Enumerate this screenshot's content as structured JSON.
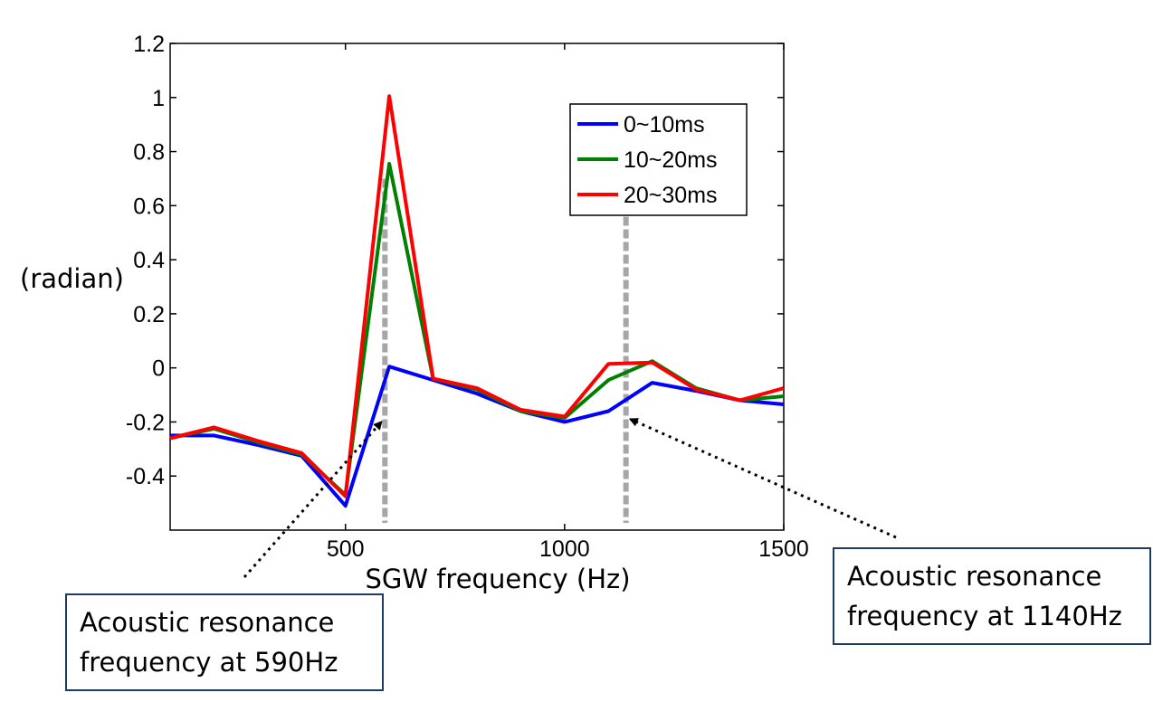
{
  "chart_data": {
    "type": "line",
    "xlabel": "SGW frequency (Hz)",
    "ylabel": "(radian)",
    "xlim": [
      100,
      1500
    ],
    "ylim": [
      -0.6,
      1.2
    ],
    "x_ticks": [
      500,
      1000,
      1500
    ],
    "y_ticks": [
      1.2,
      1,
      0.8,
      0.6,
      0.4,
      0.2,
      0,
      -0.2,
      -0.4
    ],
    "x_tick_labels": [
      "500",
      "1000",
      "1500"
    ],
    "y_tick_labels": [
      "1.2",
      "1",
      "0.8",
      "0.6",
      "0.4",
      "0.2",
      "0",
      "-0.2",
      "-0.4"
    ],
    "grid": false,
    "legend_position": "top-right",
    "x": [
      100,
      200,
      300,
      400,
      500,
      600,
      700,
      800,
      900,
      1000,
      1100,
      1200,
      1300,
      1400,
      1500
    ],
    "series": [
      {
        "name": "0~10ms",
        "color": "#0000ff",
        "values": [
          -0.25,
          -0.25,
          -0.285,
          -0.325,
          -0.51,
          0.005,
          -0.045,
          -0.095,
          -0.16,
          -0.2,
          -0.16,
          -0.055,
          -0.085,
          -0.12,
          -0.135
        ]
      },
      {
        "name": "10~20ms",
        "color": "#008000",
        "values": [
          -0.26,
          -0.225,
          -0.275,
          -0.32,
          -0.47,
          0.755,
          -0.04,
          -0.08,
          -0.16,
          -0.185,
          -0.045,
          0.025,
          -0.075,
          -0.12,
          -0.105
        ]
      },
      {
        "name": "20~30ms",
        "color": "#ff0000",
        "values": [
          -0.26,
          -0.22,
          -0.27,
          -0.315,
          -0.475,
          1.005,
          -0.04,
          -0.075,
          -0.155,
          -0.18,
          0.015,
          0.02,
          -0.08,
          -0.12,
          -0.075
        ]
      }
    ],
    "annotations": [
      {
        "marker_x": 590,
        "lines": [
          "Acoustic resonance",
          "frequency at 590Hz"
        ]
      },
      {
        "marker_x": 1140,
        "lines": [
          "Acoustic resonance",
          "frequency at 1140Hz"
        ]
      }
    ]
  }
}
